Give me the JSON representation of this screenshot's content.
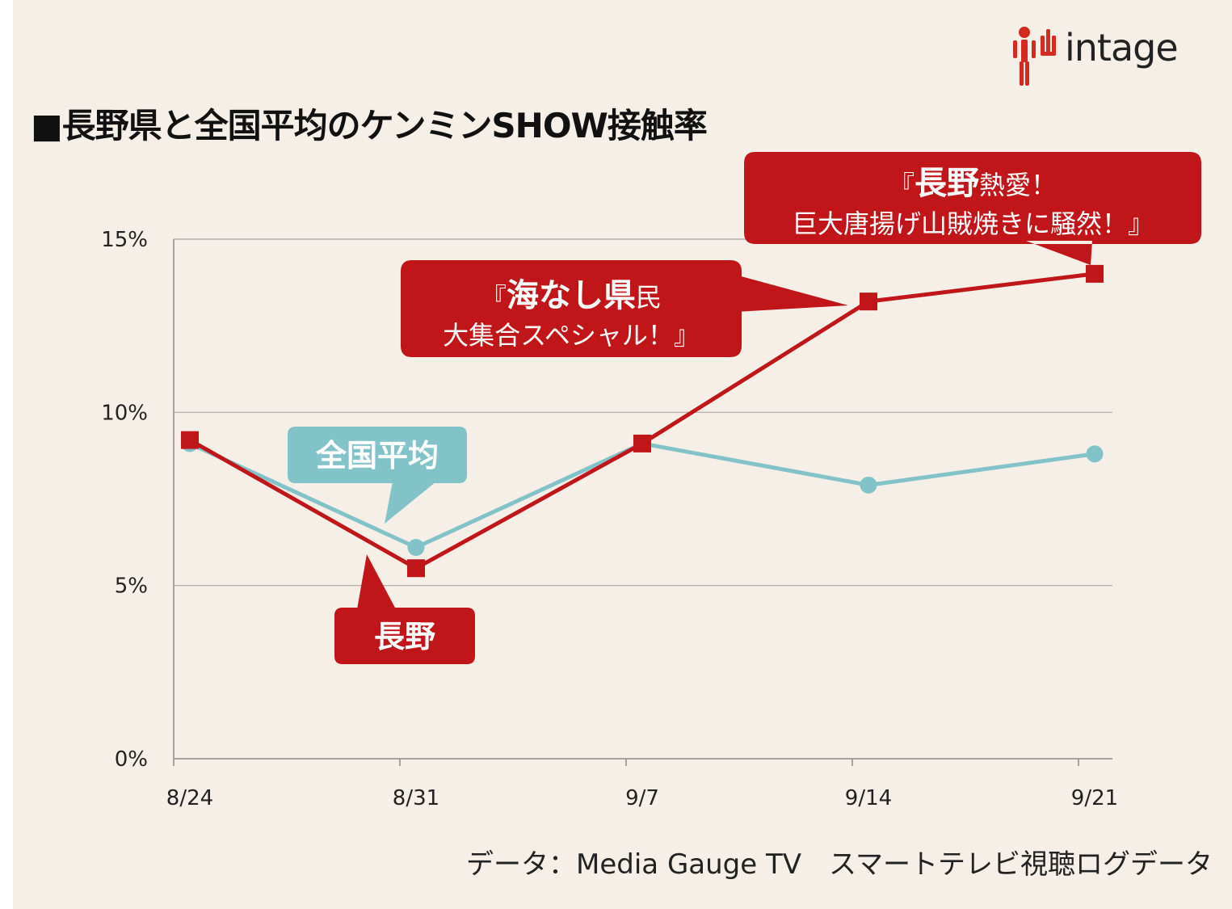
{
  "title": "■長野県と全国平均のケンミンSHOW接触率",
  "logo": {
    "brand": "intage",
    "icon": "intage-figure-logo-icon"
  },
  "source": "データ：Media Gauge TV　スマートテレビ視聴ログデータ",
  "colors": {
    "nagano": "#c0161a",
    "national": "#82c3c9",
    "background": "#f5efe8",
    "grid": "#a8a8a8"
  },
  "callouts": {
    "national_label": "全国平均",
    "nagano_label": "長野",
    "umi_open": "『",
    "umi_bold": "海なし県",
    "umi_rest": "民",
    "umi_line2": "大集合スペシャル！』",
    "netsu_open": "『",
    "netsu_bold": "長野",
    "netsu_rest": "熱愛！",
    "netsu_line2": "巨大唐揚げ山賊焼きに騒然！』"
  },
  "chart_data": {
    "type": "line",
    "categories": [
      "8/24",
      "8/31",
      "9/7",
      "9/14",
      "9/21"
    ],
    "yticks": [
      "0%",
      "5%",
      "10%",
      "15%"
    ],
    "ylim": [
      0,
      15
    ],
    "grid": true,
    "series": [
      {
        "name": "全国平均",
        "marker": "circle",
        "values": [
          9.1,
          6.1,
          9.1,
          7.9,
          8.8
        ]
      },
      {
        "name": "長野",
        "marker": "square",
        "values": [
          9.2,
          5.5,
          9.1,
          13.2,
          14.0
        ]
      }
    ]
  }
}
